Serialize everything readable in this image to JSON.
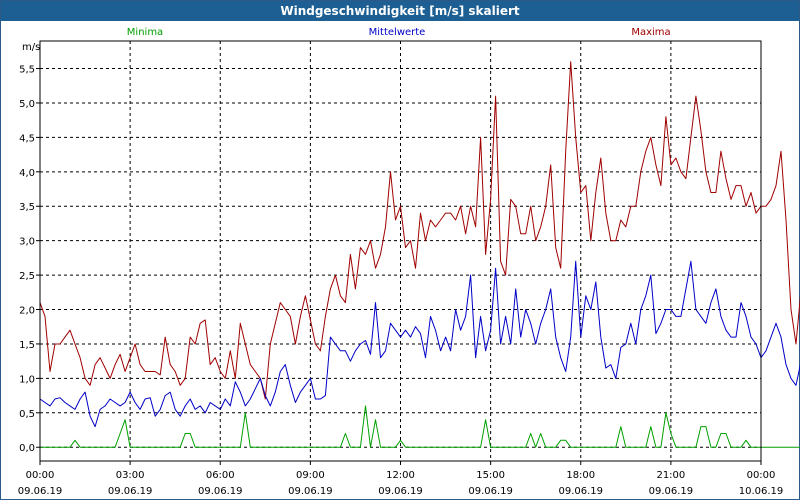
{
  "window": {
    "title": "Windgeschwindigkeit [m/s] skaliert"
  },
  "chart_data": {
    "type": "line",
    "title": "Windgeschwindigkeit [m/s] skaliert",
    "ylabel": "m/s",
    "ylim": [
      -0.2,
      5.9
    ],
    "grid": true,
    "legend_placement": "top",
    "y_ticks": [
      "0,0",
      "0,5",
      "1,0",
      "1,5",
      "2,0",
      "2,5",
      "3,0",
      "3,5",
      "4,0",
      "4,5",
      "5,0",
      "5,5"
    ],
    "x_range_hours": [
      0,
      24
    ],
    "x_ticks": [
      {
        "time": "00:00",
        "date": "09.06.19"
      },
      {
        "time": "03:00",
        "date": "09.06.19"
      },
      {
        "time": "06:00",
        "date": "09.06.19"
      },
      {
        "time": "09:00",
        "date": "09.06.19"
      },
      {
        "time": "12:00",
        "date": "09.06.19"
      },
      {
        "time": "15:00",
        "date": "09.06.19"
      },
      {
        "time": "18:00",
        "date": "09.06.19"
      },
      {
        "time": "21:00",
        "date": "09.06.19"
      },
      {
        "time": "00:00",
        "date": "10.06.19"
      }
    ],
    "sample_interval_minutes": 10,
    "series": [
      {
        "name": "Minima",
        "color": "#00a000",
        "values": [
          0.0,
          0.0,
          0.0,
          0.0,
          0.0,
          0.0,
          0.0,
          0.1,
          0.0,
          0.0,
          0.0,
          0.0,
          0.0,
          0.0,
          0.0,
          0.0,
          0.2,
          0.4,
          0.0,
          0.0,
          0.0,
          0.0,
          0.0,
          0.0,
          0.0,
          0.0,
          0.0,
          0.0,
          0.0,
          0.2,
          0.2,
          0.0,
          0.0,
          0.0,
          0.0,
          0.0,
          0.0,
          0.0,
          0.0,
          0.0,
          0.0,
          0.5,
          0.0,
          0.0,
          0.0,
          0.0,
          0.0,
          0.0,
          0.0,
          0.0,
          0.0,
          0.0,
          0.0,
          0.0,
          0.0,
          0.0,
          0.0,
          0.0,
          0.0,
          0.0,
          0.0,
          0.2,
          0.0,
          0.0,
          0.0,
          0.6,
          0.0,
          0.4,
          0.0,
          0.0,
          0.0,
          0.0,
          0.1,
          0.0,
          0.0,
          0.0,
          0.0,
          0.0,
          0.0,
          0.0,
          0.0,
          0.0,
          0.0,
          0.0,
          0.0,
          0.0,
          0.0,
          0.0,
          0.0,
          0.4,
          0.0,
          0.0,
          0.0,
          0.0,
          0.0,
          0.0,
          0.0,
          0.0,
          0.2,
          0.0,
          0.2,
          0.0,
          0.0,
          0.0,
          0.1,
          0.1,
          0.0,
          0.0,
          0.0,
          0.0,
          0.0,
          0.0,
          0.0,
          0.0,
          0.0,
          0.0,
          0.3,
          0.0,
          0.0,
          0.0,
          0.0,
          0.0,
          0.3,
          0.0,
          0.0,
          0.5,
          0.2,
          0.0,
          0.0,
          0.0,
          0.0,
          0.0,
          0.3,
          0.3,
          0.0,
          0.0,
          0.2,
          0.2,
          0.0,
          0.0,
          0.0,
          0.1,
          0.0,
          0.0,
          0.0,
          0.0,
          0.0,
          0.0,
          0.0,
          0.0,
          0.0,
          0.0,
          0.0,
          0.0,
          0.0,
          0.0,
          0.0,
          0.0,
          0.0,
          0.0,
          0.0,
          0.0,
          0.0,
          0.0,
          0.0,
          0.0,
          0.1,
          0.4,
          0.3,
          0.0,
          0.0,
          0.0,
          0.0,
          0.0,
          0.0,
          0.0,
          0.0,
          0.0,
          0.4,
          0.6,
          0.0,
          0.0,
          0.0,
          0.0,
          0.0,
          0.0,
          0.3,
          0.4,
          0.0,
          0.0,
          0.0,
          0.0,
          0.0,
          0.0,
          0.0,
          0.0,
          0.0,
          0.1,
          0.2,
          0.2,
          0.1,
          0.0,
          0.2,
          0.0,
          0.0,
          0.0,
          0.0,
          0.0,
          0.0,
          0.0,
          0.0,
          0.0,
          0.0,
          0.0,
          0.0,
          0.0,
          0.0,
          0.0,
          0.0,
          0.0,
          0.0,
          0.1,
          0.0,
          0.0,
          0.0,
          0.0,
          0.0,
          0.0,
          0.0,
          0.0,
          0.0,
          0.0,
          0.0,
          0.0,
          0.0,
          0.0,
          0.0,
          0.0,
          0.0,
          0.0,
          0.0,
          0.0,
          0.0,
          0.0
        ]
      },
      {
        "name": "Mittelwerte",
        "color": "#0000c8",
        "values": [
          0.7,
          0.65,
          0.6,
          0.7,
          0.72,
          0.65,
          0.6,
          0.55,
          0.7,
          0.8,
          0.45,
          0.3,
          0.55,
          0.6,
          0.7,
          0.65,
          0.6,
          0.65,
          0.8,
          0.65,
          0.55,
          0.7,
          0.72,
          0.45,
          0.55,
          0.75,
          0.8,
          0.55,
          0.45,
          0.6,
          0.7,
          0.55,
          0.6,
          0.5,
          0.65,
          0.6,
          0.55,
          0.7,
          0.6,
          0.95,
          0.8,
          0.6,
          0.7,
          0.85,
          1.0,
          0.75,
          0.6,
          0.8,
          1.1,
          1.2,
          0.9,
          0.65,
          0.8,
          0.9,
          1.0,
          0.7,
          0.7,
          0.75,
          1.6,
          1.5,
          1.4,
          1.4,
          1.25,
          1.4,
          1.5,
          1.55,
          1.35,
          2.1,
          1.3,
          1.4,
          1.8,
          1.7,
          1.6,
          1.7,
          1.6,
          1.75,
          1.65,
          1.3,
          1.9,
          1.7,
          1.4,
          1.6,
          1.4,
          2.0,
          1.7,
          1.9,
          2.5,
          1.3,
          1.9,
          1.4,
          1.7,
          2.6,
          1.5,
          1.9,
          1.5,
          2.3,
          1.6,
          2.0,
          1.8,
          1.5,
          1.8,
          2.0,
          2.3,
          1.6,
          1.3,
          1.1,
          1.6,
          2.7,
          1.6,
          2.2,
          2.0,
          2.4,
          1.6,
          1.15,
          1.2,
          1.0,
          1.45,
          1.5,
          1.8,
          1.5,
          2.0,
          2.2,
          2.5,
          1.65,
          1.8,
          2.0,
          2.0,
          1.9,
          1.9,
          2.3,
          2.7,
          2.0,
          1.9,
          1.8,
          2.1,
          2.3,
          1.9,
          1.7,
          1.6,
          1.6,
          2.1,
          1.9,
          1.6,
          1.5,
          1.3,
          1.4,
          1.6,
          1.8,
          1.6,
          1.2,
          1.0,
          0.9,
          1.25,
          2.0,
          1.1,
          0.95,
          1.0,
          1.2,
          1.1,
          1.05,
          1.0,
          1.15,
          1.5,
          1.6,
          1.9,
          2.0,
          0.8,
          0.9,
          0.8,
          0.75,
          1.2,
          0.9,
          0.9,
          1.1,
          1.3,
          1.4,
          1.6,
          1.2,
          1.3,
          1.1,
          1.2,
          1.0,
          0.95,
          0.75,
          0.8,
          0.7,
          0.6,
          0.55,
          0.7,
          0.85,
          0.9,
          1.0,
          1.1,
          1.4,
          1.25,
          1.5,
          1.6,
          1.3,
          1.2,
          1.4,
          1.6,
          1.0,
          1.1,
          1.0,
          0.95,
          0.8,
          0.75,
          0.9,
          0.8,
          0.7,
          0.6,
          0.8,
          0.7,
          1.3,
          0.9,
          0.55,
          0.5,
          0.75,
          0.85,
          1.1,
          1.1,
          1.5,
          1.3,
          1.05,
          1.0,
          1.05,
          1.15,
          1.1,
          0.75,
          0.5,
          0.6,
          0.7,
          0.7,
          0.8,
          0.9,
          1.0,
          1.1,
          1.2,
          1.25,
          1.4,
          1.6,
          1.5,
          1.4,
          1.2,
          1.1
        ]
      },
      {
        "name": "Maxima",
        "color": "#a00000",
        "values": [
          2.1,
          1.9,
          1.1,
          1.5,
          1.5,
          1.6,
          1.7,
          1.5,
          1.3,
          1.0,
          0.9,
          1.2,
          1.3,
          1.15,
          1.0,
          1.2,
          1.35,
          1.1,
          1.3,
          1.5,
          1.2,
          1.1,
          1.1,
          1.1,
          1.05,
          1.6,
          1.2,
          1.1,
          0.9,
          1.0,
          1.6,
          1.5,
          1.8,
          1.85,
          1.2,
          1.3,
          1.1,
          1.0,
          1.4,
          1.0,
          1.8,
          1.5,
          1.2,
          1.1,
          1.0,
          0.7,
          1.5,
          1.8,
          2.1,
          2.0,
          1.9,
          1.5,
          1.9,
          2.2,
          1.85,
          1.5,
          1.4,
          1.9,
          2.3,
          2.5,
          2.2,
          2.1,
          2.8,
          2.3,
          2.9,
          2.8,
          3.0,
          2.6,
          2.8,
          3.2,
          4.0,
          3.3,
          3.5,
          2.9,
          3.0,
          2.6,
          3.4,
          3.0,
          3.3,
          3.2,
          3.3,
          3.4,
          3.4,
          3.3,
          3.5,
          3.1,
          3.5,
          3.2,
          4.5,
          2.8,
          3.6,
          5.1,
          2.7,
          2.5,
          3.6,
          3.5,
          3.1,
          3.1,
          3.5,
          3.0,
          3.2,
          3.5,
          4.1,
          2.9,
          2.6,
          4.3,
          5.6,
          4.5,
          3.7,
          3.8,
          3.0,
          3.7,
          4.2,
          3.4,
          3.0,
          3.0,
          3.3,
          3.2,
          3.5,
          3.5,
          4.0,
          4.3,
          4.5,
          4.1,
          3.8,
          4.8,
          4.1,
          4.2,
          4.0,
          3.9,
          4.5,
          5.1,
          4.6,
          4.0,
          3.7,
          3.7,
          4.3,
          3.9,
          3.6,
          3.8,
          3.8,
          3.5,
          3.7,
          3.4,
          3.5,
          3.5,
          3.6,
          3.8,
          4.3,
          3.3,
          2.0,
          1.5,
          2.3,
          2.0,
          1.6,
          1.5,
          1.7,
          1.9,
          2.1,
          2.5,
          2.9,
          3.1,
          3.0,
          2.4,
          1.6,
          1.2,
          1.4,
          1.7,
          1.7,
          1.4,
          1.3,
          1.7,
          2.3,
          2.5,
          2.8,
          2.9,
          2.4,
          1.8,
          1.5,
          1.6,
          1.3,
          1.2,
          1.3,
          1.0,
          1.5,
          1.6,
          1.4,
          1.2,
          1.3,
          1.0,
          1.4,
          1.6,
          1.6,
          1.9,
          2.1,
          2.0,
          2.1,
          2.0,
          2.2,
          2.5,
          2.3,
          3.3,
          3.0,
          2.5,
          2.4,
          2.6,
          2.5,
          1.8,
          1.5,
          1.6,
          1.2,
          1.4,
          1.6,
          1.5,
          1.4,
          1.3,
          1.1,
          1.8,
          2.0,
          1.8,
          1.5,
          1.2,
          1.3,
          1.5,
          1.2,
          2.0,
          2.0,
          2.1,
          2.1,
          1.5,
          1.4,
          1.9,
          1.6,
          1.5,
          1.3,
          1.1,
          1.3,
          1.5,
          1.7,
          1.9,
          2.0,
          2.1,
          2.0,
          2.0,
          1.7,
          1.4,
          1.2,
          1.0,
          1.3,
          1.6,
          1.9,
          2.0
        ]
      }
    ]
  }
}
